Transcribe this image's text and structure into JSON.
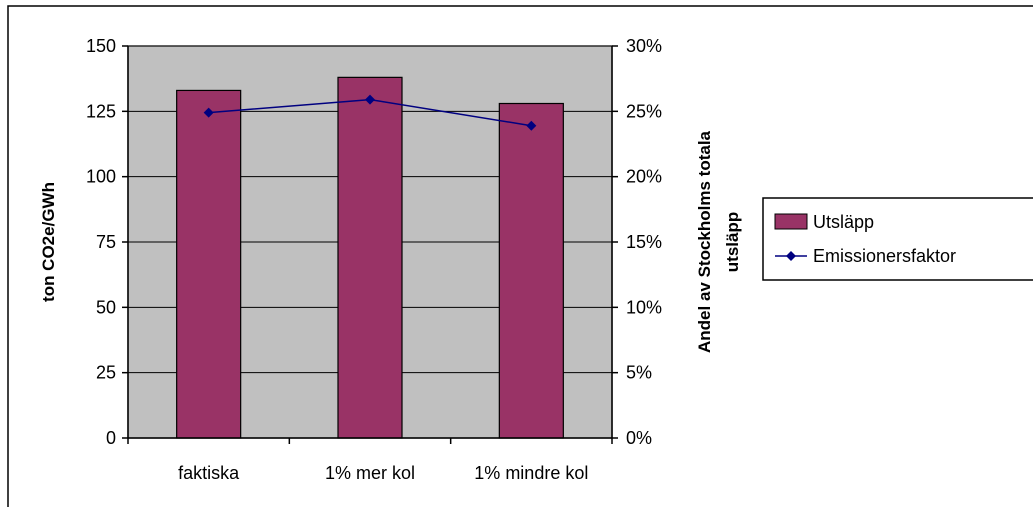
{
  "chart_data": {
    "type": "bar",
    "categories": [
      "faktiska",
      "1% mer kol",
      "1% mindre kol"
    ],
    "series": [
      {
        "name": "Utsläpp",
        "type": "bar",
        "axis": "left",
        "values": [
          133,
          138,
          128
        ],
        "color": "#993366"
      },
      {
        "name": "Emissionersfaktor",
        "type": "line",
        "axis": "right",
        "values": [
          0.249,
          0.259,
          0.239
        ],
        "color": "#000080",
        "marker": "diamond"
      }
    ],
    "ylabel": "ton CO2e/GWh",
    "y2label": [
      "Andel av Stockholms totala",
      "utsläpp"
    ],
    "ylim": [
      0,
      150
    ],
    "yticks": [
      0,
      25,
      50,
      75,
      100,
      125,
      150
    ],
    "y2lim": [
      0,
      0.3
    ],
    "y2ticks": [
      "0%",
      "5%",
      "10%",
      "15%",
      "20%",
      "25%",
      "30%"
    ],
    "plot_background": "#c0c0c0",
    "grid": "horizontal",
    "legend_position": "right"
  }
}
